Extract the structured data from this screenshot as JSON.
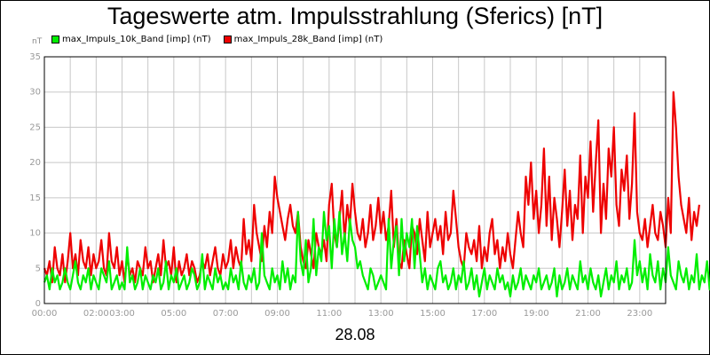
{
  "chart_data": {
    "type": "line",
    "title": "Tageswerte atm. Impulsstrahlung (Sferics) [nT]",
    "y_unit_label": "nT",
    "date_label": "28.08",
    "ylim": [
      0,
      35
    ],
    "xlim": [
      0,
      24
    ],
    "y_ticks": [
      "0",
      "5",
      "10",
      "15",
      "20",
      "25",
      "30",
      "35"
    ],
    "x_ticks": [
      {
        "label": "00:00",
        "hour": 0
      },
      {
        "label": "02:00",
        "hour": 2
      },
      {
        "label": "03:00",
        "hour": 3
      },
      {
        "label": "05:00",
        "hour": 5
      },
      {
        "label": "07:00",
        "hour": 7
      },
      {
        "label": "09:00",
        "hour": 9
      },
      {
        "label": "11:00",
        "hour": 11
      },
      {
        "label": "13:00",
        "hour": 13
      },
      {
        "label": "15:00",
        "hour": 15
      },
      {
        "label": "17:00",
        "hour": 17
      },
      {
        "label": "19:00",
        "hour": 19
      },
      {
        "label": "21:00",
        "hour": 21
      },
      {
        "label": "23:00",
        "hour": 23
      }
    ],
    "grid": true,
    "legend_position": "top-left",
    "x_step_hours": 0.1,
    "series": [
      {
        "name": "max_Impuls_10k_Band [imp] (nT)",
        "color": "#00ee00",
        "values": [
          3,
          4,
          2,
          5,
          3,
          4,
          2,
          3,
          5,
          3,
          2,
          4,
          6,
          3,
          2,
          4,
          3,
          5,
          2,
          4,
          3,
          2,
          5,
          4,
          3,
          6,
          2,
          3,
          4,
          2,
          3,
          2,
          8,
          3,
          4,
          2,
          3,
          5,
          2,
          4,
          3,
          2,
          4,
          3,
          5,
          2,
          3,
          6,
          2,
          4,
          3,
          5,
          2,
          3,
          4,
          2,
          3,
          5,
          4,
          2,
          3,
          7,
          2,
          4,
          3,
          2,
          5,
          3,
          4,
          2,
          3,
          2,
          5,
          3,
          4,
          2,
          6,
          3,
          2,
          4,
          3,
          5,
          2,
          3,
          10,
          4,
          3,
          2,
          5,
          3,
          4,
          2,
          6,
          3,
          5,
          2,
          4,
          3,
          13,
          6,
          4,
          9,
          3,
          5,
          12,
          4,
          8,
          6,
          13,
          9,
          11,
          5,
          12,
          8,
          13,
          7,
          10,
          6,
          12,
          9,
          8,
          5,
          6,
          4,
          3,
          2,
          5,
          4,
          2,
          3,
          4,
          3,
          2,
          12,
          5,
          9,
          11,
          4,
          12,
          6,
          10,
          8,
          12,
          5,
          11,
          7,
          3,
          5,
          2,
          4,
          3,
          2,
          5,
          6,
          3,
          4,
          2,
          3,
          5,
          2,
          4,
          3,
          6,
          2,
          3,
          5,
          2,
          4,
          1,
          3,
          5,
          2,
          4,
          3,
          2,
          5,
          3,
          4,
          2,
          3,
          1,
          4,
          2,
          3,
          5,
          2,
          4,
          3,
          2,
          4,
          3,
          5,
          2,
          3,
          4,
          2,
          3,
          5,
          1,
          4,
          2,
          3,
          5,
          2,
          4,
          3,
          2,
          6,
          3,
          4,
          2,
          5,
          3,
          2,
          4,
          1,
          3,
          5,
          2,
          4,
          3,
          6,
          2,
          4,
          3,
          5,
          2,
          3,
          9,
          4,
          6,
          3,
          5,
          2,
          7,
          4,
          3,
          6,
          2,
          5,
          3,
          8,
          4,
          3,
          2,
          6,
          4,
          3,
          5,
          2,
          4,
          3,
          7,
          2,
          4,
          3,
          6,
          2,
          4,
          11,
          3,
          5,
          2,
          4,
          3,
          1,
          3,
          2
        ]
      },
      {
        "name": "max_Impuls_28k_Band [imp] (nT)",
        "color": "#ee0000",
        "values": [
          5,
          4,
          6,
          3,
          8,
          5,
          4,
          7,
          3,
          6,
          10,
          5,
          7,
          4,
          9,
          6,
          5,
          8,
          4,
          7,
          5,
          6,
          9,
          5,
          4,
          10,
          6,
          5,
          8,
          4,
          6,
          3,
          7,
          4,
          5,
          3,
          6,
          5,
          4,
          8,
          5,
          6,
          3,
          5,
          7,
          4,
          9,
          5,
          6,
          4,
          8,
          3,
          6,
          4,
          5,
          7,
          4,
          6,
          5,
          3,
          4,
          6,
          5,
          7,
          4,
          6,
          8,
          5,
          4,
          7,
          5,
          6,
          9,
          5,
          8,
          6,
          5,
          12,
          7,
          9,
          6,
          14,
          10,
          8,
          6,
          11,
          8,
          13,
          10,
          18,
          15,
          13,
          11,
          9,
          12,
          14,
          11,
          10,
          13,
          8,
          6,
          5,
          9,
          7,
          5,
          10,
          8,
          7,
          9,
          6,
          14,
          17,
          10,
          8,
          12,
          16,
          9,
          14,
          11,
          17,
          13,
          10,
          9,
          12,
          8,
          10,
          14,
          9,
          11,
          15,
          10,
          13,
          9,
          11,
          16,
          8,
          12,
          6,
          5,
          9,
          7,
          5,
          11,
          10,
          7,
          12,
          9,
          6,
          13,
          8,
          10,
          12,
          9,
          11,
          7,
          13,
          9,
          10,
          16,
          12,
          8,
          6,
          5,
          10,
          8,
          7,
          9,
          6,
          11,
          5,
          8,
          6,
          10,
          12,
          7,
          9,
          5,
          8,
          6,
          10,
          7,
          5,
          9,
          13,
          10,
          8,
          18,
          14,
          20,
          12,
          16,
          10,
          14,
          22,
          11,
          18,
          9,
          15,
          12,
          8,
          13,
          19,
          11,
          16,
          9,
          14,
          12,
          21,
          10,
          18,
          15,
          23,
          13,
          20,
          26,
          10,
          17,
          12,
          22,
          18,
          25,
          14,
          11,
          19,
          16,
          21,
          12,
          17,
          27,
          13,
          10,
          9,
          12,
          8,
          11,
          14,
          10,
          9,
          13,
          11,
          8,
          15,
          10,
          30,
          25,
          18,
          14,
          12,
          10,
          15,
          9,
          13,
          11,
          14
        ]
      }
    ]
  }
}
